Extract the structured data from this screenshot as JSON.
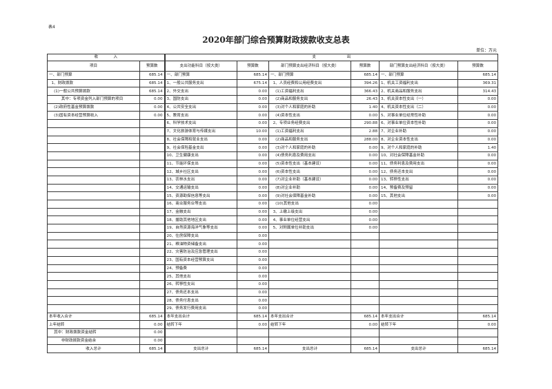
{
  "doc": {
    "tag": "表4",
    "title": "2020年部门综合预算财政拨款收支总表",
    "unit": "单位：万元"
  },
  "header": {
    "income": "收　　　　入",
    "expense": "支　　　　　　　　出",
    "cols": [
      "项目",
      "预算数",
      "支出功能科目（按大类）",
      "预算数",
      "部门预算支出经济科目（按大类）",
      "预算数",
      "部门预算支出经济科目（按大类）",
      "预算数"
    ]
  },
  "rows": [
    [
      "一、部门预算",
      "685.14",
      "一、部门预算",
      "685.14",
      "一、部门预算",
      "685.14",
      "一、部门预算",
      "685.14"
    ],
    [
      "  1、财政拨款",
      "685.14",
      "1、一般公共服务支出",
      "675.14",
      "  1、人员经费和公用经费支出",
      "394.26",
      "1、机关工资福利支出",
      "369.31"
    ],
    [
      "    (1)一般公共预算拨款",
      "685.14",
      "2、外交支出",
      "0.00",
      "    (1)工资福利支出",
      "366.43",
      "2、机关商品和服务支出",
      "314.43"
    ],
    [
      "          其中：专项资金列入部门预算的项目",
      "0.00",
      "3、国防支出",
      "0.00",
      "    (2)商品和服务支出",
      "26.43",
      "3、机关资本性支出（一）",
      "0.00"
    ],
    [
      "    (2)政府性基金预算拨款",
      "0.00",
      "4、公共安全支出",
      "0.00",
      "    (3)对个人和家庭的补助",
      "1.40",
      "4、机关资本性支出（二）",
      "0.00"
    ],
    [
      "    (3)国有资本经营预算收入",
      "0.00",
      "5、教育支出",
      "0.00",
      "    (4)资本性支出",
      "0.00",
      "5、对事业单位经常性补助",
      "0.00"
    ],
    [
      "",
      "",
      "6、科学技术支出",
      "0.00",
      "  2、专项业务经费支出",
      "290.88",
      "6、对事业单位资本性补助",
      "0.00"
    ],
    [
      "",
      "",
      "7、文化旅游体育与传媒支出",
      "10.00",
      "    (1)工资福利支出",
      "2.88",
      "7、对企业补助",
      "0.00"
    ],
    [
      "",
      "",
      "8、社会保障和就业支出",
      "0.00",
      "    (2)商品和服务支出",
      "288.00",
      "8、对企业资本性支出",
      "0.00"
    ],
    [
      "",
      "",
      "9、社会保险基金支出",
      "0.00",
      "    (3)对个人和家庭的补助",
      "0.00",
      "9、对个人和家庭的补助",
      "1.40"
    ],
    [
      "",
      "",
      "10、卫生健康支出",
      "0.00",
      "    (4)债务利息及费用支出",
      "0.00",
      "10、对社会保障基金补助",
      "0.00"
    ],
    [
      "",
      "",
      "11、节能环保支出",
      "0.00",
      "    (5)资本性支出（基本建设）",
      "0.00",
      "11、债务利息及费用支出",
      "0.00"
    ],
    [
      "",
      "",
      "12、城乡社区支出",
      "0.00",
      "    (6)资本性支出",
      "0.00",
      "12、债务还本支出",
      "0.00"
    ],
    [
      "",
      "",
      "13、农林水支出",
      "0.00",
      "    (7)对企业补助（基本建设）",
      "0.00",
      "13、转移性支出",
      "0.00"
    ],
    [
      "",
      "",
      "14、交通运输支出",
      "0.00",
      "    (8)对企业补助",
      "0.00",
      "14、预备费及预留",
      "0.00"
    ],
    [
      "",
      "",
      "15、资源勘探信息等支出",
      "0.00",
      "    (9)对社会保障基金补助",
      "0.00",
      "15、其他支出",
      "0.00"
    ],
    [
      "",
      "",
      "16、商业服务业等支出",
      "0.00",
      "    (10)其他支出",
      "0.00",
      "",
      ""
    ],
    [
      "",
      "",
      "17、金融支出",
      "0.00",
      "  3、上缴上级支出",
      "0.00",
      "",
      ""
    ],
    [
      "",
      "",
      "18、援助其他地区支出",
      "0.00",
      "  4、事业单位经营支出",
      "0.00",
      "",
      ""
    ],
    [
      "",
      "",
      "19、自然资源海洋气象等支出",
      "0.00",
      "  5、对附属单位补助支出",
      "0.00",
      "",
      ""
    ],
    [
      "",
      "",
      "20、住房保障支出",
      "0.00",
      "",
      "",
      "",
      ""
    ],
    [
      "",
      "",
      "21、粮油物资储备支出",
      "0.00",
      "",
      "",
      "",
      ""
    ],
    [
      "",
      "",
      "22、灾害防治及应急管理支出",
      "0.00",
      "",
      "",
      "",
      ""
    ],
    [
      "",
      "",
      "23、国有资本经营预算支出",
      "0.00",
      "",
      "",
      "",
      ""
    ],
    [
      "",
      "",
      "24、预备费",
      "0.00",
      "",
      "",
      "",
      ""
    ],
    [
      "",
      "",
      "25、其他支出",
      "0.00",
      "",
      "",
      "",
      ""
    ],
    [
      "",
      "",
      "26、转移性支出",
      "0.00",
      "",
      "",
      "",
      ""
    ],
    [
      "",
      "",
      "27、债务还本支出",
      "0.00",
      "",
      "",
      "",
      ""
    ],
    [
      "",
      "",
      "28、债务付息支出",
      "0.00",
      "",
      "",
      "",
      ""
    ],
    [
      "",
      "",
      "29、债务发行费用支出",
      "0.00",
      "",
      "",
      "",
      ""
    ]
  ],
  "footer": [
    [
      "本年收入合计",
      "685.14",
      "本年支出合计",
      "685.14",
      "本年支出合计",
      "685.14",
      "本年支出合计",
      "685.14"
    ],
    [
      "上年结转",
      "0.00",
      "结转下年",
      "0.00",
      "结转下年",
      "0.00",
      "结转下年",
      "0.00"
    ],
    [
      "    其中：财政拨款资金结转",
      "0.00",
      "",
      "",
      "",
      "",
      "",
      ""
    ],
    [
      "          非财政拨款资金结余",
      "0.00",
      "",
      "",
      "",
      "",
      "",
      ""
    ],
    [
      "收入总计",
      "685.14",
      "支出总计",
      "685.14",
      "支出总计",
      "685.14",
      "支出总计",
      "685.14"
    ]
  ]
}
